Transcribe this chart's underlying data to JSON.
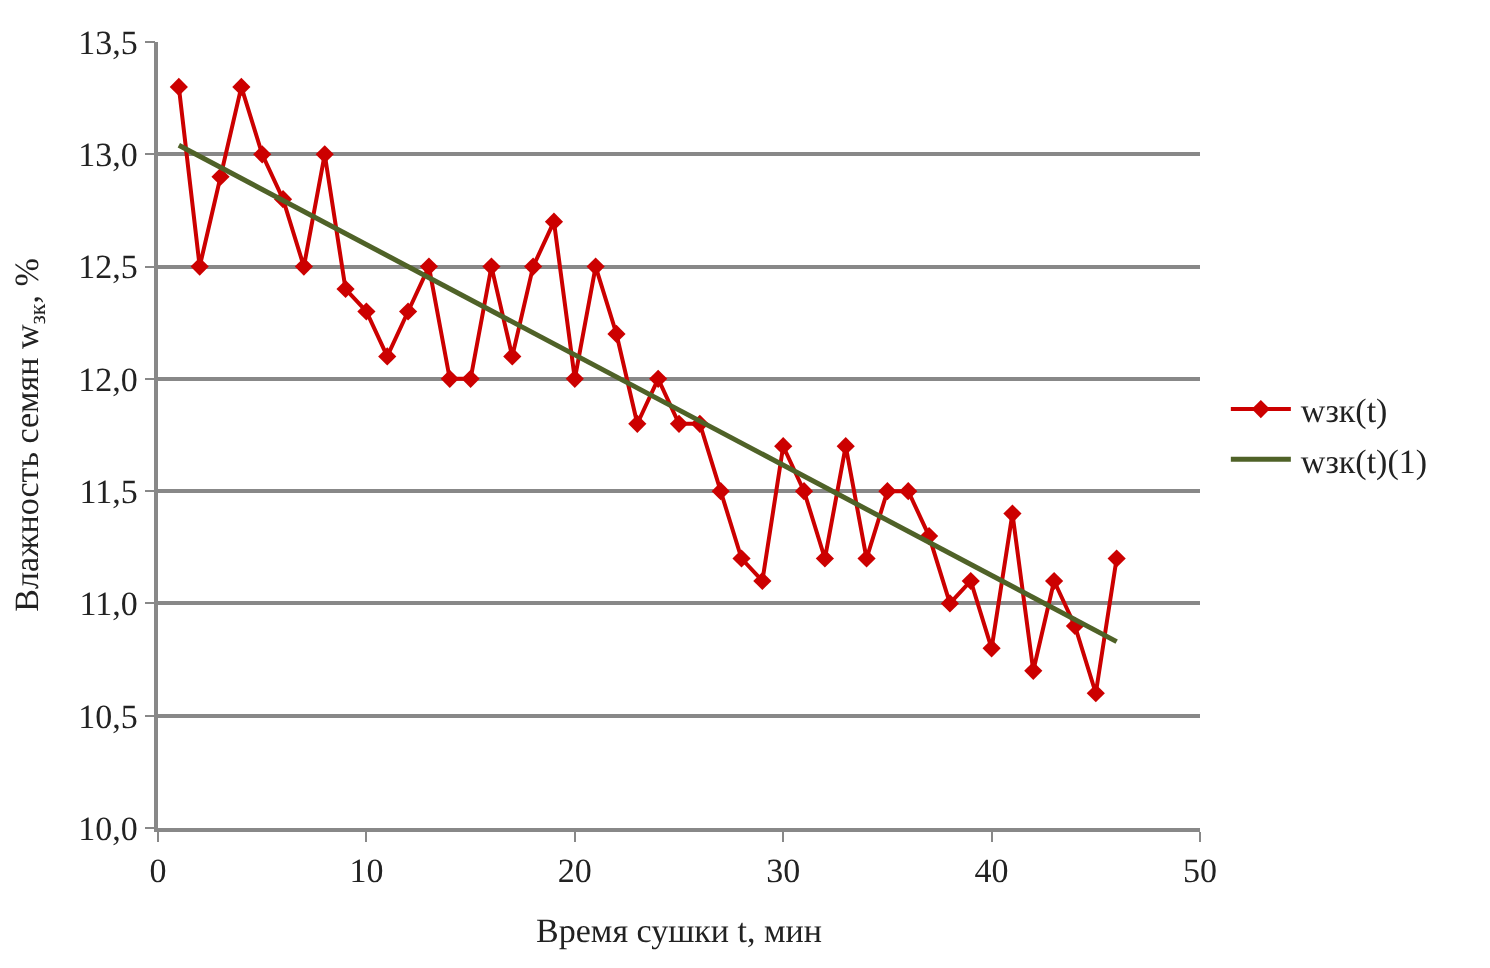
{
  "chart_data": {
    "type": "line",
    "xlabel": "Время сушки t, мин",
    "ylabel": "Влажность семян w$_{зк}$, %",
    "xlim": [
      0,
      50
    ],
    "xticks": [
      0,
      10,
      20,
      30,
      40,
      50
    ],
    "ylim": [
      10.0,
      13.5
    ],
    "yticks": [
      {
        "value": 10.0,
        "label": "10,0"
      },
      {
        "value": 10.5,
        "label": "10,5"
      },
      {
        "value": 11.0,
        "label": "11,0"
      },
      {
        "value": 11.5,
        "label": "11,5"
      },
      {
        "value": 12.0,
        "label": "12,0"
      },
      {
        "value": 12.5,
        "label": "12,5"
      },
      {
        "value": 13.0,
        "label": "13,0"
      },
      {
        "value": 13.5,
        "label": "13,5"
      }
    ],
    "grid": "y",
    "legend": "right",
    "series": [
      {
        "name": "wзк(t)",
        "color": "#cc0000",
        "marker": "diamond",
        "x": [
          1,
          2,
          3,
          4,
          5,
          6,
          7,
          8,
          9,
          10,
          11,
          12,
          13,
          14,
          15,
          16,
          17,
          18,
          19,
          20,
          21,
          22,
          23,
          24,
          25,
          26,
          27,
          28,
          29,
          30,
          31,
          32,
          33,
          34,
          35,
          36,
          37,
          38,
          39,
          40,
          41,
          42,
          43,
          44,
          45,
          46
        ],
        "values": [
          13.3,
          12.5,
          12.9,
          13.3,
          13.0,
          12.8,
          12.5,
          13.0,
          12.4,
          12.3,
          12.1,
          12.3,
          12.5,
          12.0,
          12.0,
          12.5,
          12.1,
          12.5,
          12.7,
          12.0,
          12.5,
          12.2,
          11.8,
          12.0,
          11.8,
          11.8,
          11.5,
          11.2,
          11.1,
          11.7,
          11.5,
          11.2,
          11.7,
          11.2,
          11.5,
          11.5,
          11.3,
          11.0,
          11.1,
          10.8,
          11.4,
          10.7,
          11.1,
          10.9,
          10.6,
          11.2
        ]
      },
      {
        "name": "wзк(t)(1)",
        "color": "#4f6228",
        "marker": "none",
        "x": [
          1,
          46
        ],
        "values": [
          13.04,
          10.83
        ]
      }
    ]
  }
}
